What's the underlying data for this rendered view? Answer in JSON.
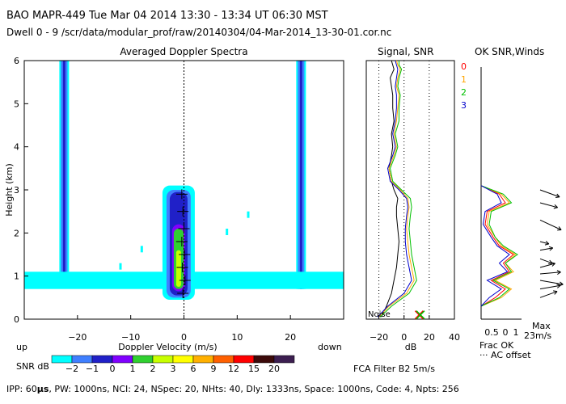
{
  "header": {
    "line1": "BAO  MAPR-449  Tue Mar 04 2014  13:30 - 13:34 UT 06:30 MST",
    "line2": "Dwell  0 -  9   /scr/data/modular_prof/raw/20140304/04-Mar-2014_13-30-01.cor.nc"
  },
  "colors": {
    "snr_palette": [
      "#00ffff",
      "#3f7fff",
      "#2020c8",
      "#8000ff",
      "#30d030",
      "#c8ff00",
      "#ffff00",
      "#ffb000",
      "#ff6000",
      "#ff0000",
      "#3c0a0a",
      "#3c1e50"
    ],
    "series": [
      "#ff0000",
      "#ffa500",
      "#00c000",
      "#0000cc"
    ]
  },
  "chart_data": [
    {
      "type": "heatmap",
      "title": "Averaged Doppler Spectra",
      "xlabel": "Doppler Velocity (m/s)",
      "ylabel": "Height (km)",
      "xlim": [
        -30,
        30
      ],
      "ylim": [
        0,
        6
      ],
      "xticks": [
        -20,
        -10,
        0,
        10,
        20
      ],
      "yticks": [
        0,
        1,
        2,
        3,
        4,
        5,
        6
      ],
      "up_label": "up",
      "down_label": "down",
      "colorbar": {
        "label": "SNR dB",
        "tick_labels": [
          "-2",
          "-1",
          "0",
          "1",
          "2",
          "3",
          "6",
          "9",
          "12",
          "15",
          "20"
        ]
      },
      "features": [
        {
          "name": "interference-line-left",
          "velocity": -22.5,
          "height_range": [
            0.75,
            6
          ]
        },
        {
          "name": "interference-line-right",
          "velocity": 22,
          "height_range": [
            0.7,
            6
          ]
        },
        {
          "name": "ground-clutter-band",
          "velocity_range": [
            -30,
            30
          ],
          "height_range": [
            0.7,
            1.1
          ]
        },
        {
          "name": "precip-core",
          "velocity": -1,
          "height_range": [
            0.5,
            3.0
          ]
        }
      ],
      "wind_profile": [
        {
          "h": 0.6,
          "v": -0.2
        },
        {
          "h": 0.9,
          "v": 0.2
        },
        {
          "h": 1.2,
          "v": -0.3
        },
        {
          "h": 1.5,
          "v": 0.1
        },
        {
          "h": 1.8,
          "v": -0.4
        },
        {
          "h": 2.1,
          "v": 0.0
        },
        {
          "h": 2.5,
          "v": -0.2
        },
        {
          "h": 2.9,
          "v": -0.4
        }
      ]
    },
    {
      "type": "line",
      "title": "Signal, SNR",
      "xlabel": "dB",
      "xlim": [
        -30,
        40
      ],
      "ylim": [
        0,
        6
      ],
      "xticks": [
        -20,
        0,
        20,
        40
      ],
      "noise_label": "Noise",
      "series": [
        {
          "name": "0",
          "x": [
            -18,
            -14,
            -10,
            -8,
            -6,
            -5,
            -4,
            -5,
            -6,
            -6,
            -5,
            -8,
            -10,
            -12,
            -10,
            -9,
            -10,
            -8,
            -9,
            -9,
            -10,
            -11,
            -8,
            -9,
            -10
          ],
          "y": [
            0.05,
            0.3,
            0.6,
            0.9,
            1.2,
            1.5,
            1.8,
            2.1,
            2.4,
            2.6,
            2.8,
            3.0,
            3.2,
            3.5,
            3.8,
            4.0,
            4.3,
            4.6,
            4.9,
            5.2,
            5.4,
            5.6,
            5.8,
            5.9,
            6.0
          ]
        },
        {
          "name": "1",
          "x": [
            -20,
            -12,
            2,
            8,
            6,
            4,
            3,
            2,
            3,
            4,
            3,
            -3,
            -10,
            -12,
            -8,
            -6,
            -8,
            -6,
            -5,
            -4,
            -6,
            -5,
            -3,
            -5,
            -6
          ],
          "y": [
            0.05,
            0.3,
            0.6,
            0.9,
            1.2,
            1.5,
            1.8,
            2.1,
            2.4,
            2.6,
            2.8,
            3.0,
            3.2,
            3.5,
            3.8,
            4.0,
            4.3,
            4.6,
            4.9,
            5.2,
            5.4,
            5.6,
            5.8,
            5.9,
            6.0
          ]
        },
        {
          "name": "2",
          "x": [
            -19,
            -10,
            4,
            10,
            8,
            6,
            5,
            4,
            5,
            6,
            5,
            -2,
            -9,
            -11,
            -7,
            -5,
            -7,
            -4,
            -4,
            -3,
            -5,
            -4,
            -2,
            -4,
            -4
          ],
          "y": [
            0.05,
            0.3,
            0.6,
            0.9,
            1.2,
            1.5,
            1.8,
            2.1,
            2.4,
            2.6,
            2.8,
            3.0,
            3.2,
            3.5,
            3.8,
            4.0,
            4.3,
            4.6,
            4.9,
            5.2,
            5.4,
            5.6,
            5.8,
            5.9,
            6.0
          ]
        },
        {
          "name": "3",
          "x": [
            -21,
            -13,
            0,
            6,
            4,
            2,
            1,
            1,
            2,
            3,
            2,
            -4,
            -11,
            -13,
            -9,
            -7,
            -9,
            -7,
            -6,
            -6,
            -7,
            -6,
            -5,
            -6,
            -7
          ],
          "y": [
            0.05,
            0.3,
            0.6,
            0.9,
            1.2,
            1.5,
            1.8,
            2.1,
            2.4,
            2.6,
            2.8,
            3.0,
            3.2,
            3.5,
            3.8,
            4.0,
            4.3,
            4.6,
            4.9,
            5.2,
            5.4,
            5.6,
            5.8,
            5.9,
            6.0
          ]
        }
      ],
      "reference_lines": [
        -20,
        0,
        20
      ],
      "noise_markers": [
        {
          "x": 12,
          "y": 0.1
        },
        {
          "x": 13,
          "y": 0.1
        }
      ]
    },
    {
      "type": "line",
      "title": "OK SNR,Winds",
      "xlabel": "Frac OK",
      "xlim": [
        0,
        1
      ],
      "ylim": [
        0,
        6
      ],
      "xtick_labels": [
        "0.5",
        "0",
        "1"
      ],
      "ac_offset_label": "··· AC offset",
      "filter_label": "FCA Filter B2  5m/s",
      "max_label": "Max",
      "max_value_label": "23m/s",
      "series_labels": [
        "0",
        "1",
        "2",
        "3"
      ],
      "series": [
        {
          "name": "0",
          "x": [
            0.0,
            0.35,
            0.6,
            0.25,
            0.7,
            0.55,
            0.8,
            0.45,
            0.3,
            0.1,
            0.15,
            0.6,
            0.45,
            0.0
          ],
          "y": [
            0.3,
            0.5,
            0.7,
            0.9,
            1.1,
            1.3,
            1.5,
            1.7,
            1.9,
            2.2,
            2.5,
            2.7,
            2.9,
            3.1
          ]
        },
        {
          "name": "1",
          "x": [
            0.0,
            0.5,
            0.75,
            0.35,
            0.8,
            0.6,
            0.85,
            0.5,
            0.35,
            0.15,
            0.2,
            0.7,
            0.5,
            0.0
          ],
          "y": [
            0.3,
            0.5,
            0.7,
            0.9,
            1.1,
            1.3,
            1.5,
            1.7,
            1.9,
            2.2,
            2.5,
            2.7,
            2.9,
            3.1
          ]
        },
        {
          "name": "2",
          "x": [
            0.0,
            0.45,
            0.7,
            0.3,
            0.75,
            0.6,
            0.9,
            0.55,
            0.35,
            0.2,
            0.25,
            0.75,
            0.55,
            0.0
          ],
          "y": [
            0.3,
            0.5,
            0.7,
            0.9,
            1.1,
            1.3,
            1.5,
            1.7,
            1.9,
            2.2,
            2.5,
            2.7,
            2.9,
            3.1
          ]
        },
        {
          "name": "3",
          "x": [
            0.0,
            0.2,
            0.5,
            0.15,
            0.65,
            0.45,
            0.7,
            0.4,
            0.25,
            0.05,
            0.1,
            0.5,
            0.4,
            0.0
          ],
          "y": [
            0.3,
            0.5,
            0.7,
            0.9,
            1.1,
            1.3,
            1.5,
            1.7,
            1.9,
            2.2,
            2.5,
            2.7,
            2.9,
            3.1
          ]
        }
      ],
      "winds": [
        {
          "h": 0.5,
          "dir_deg": 20,
          "speed": 0.7
        },
        {
          "h": 0.7,
          "dir_deg": 10,
          "speed": 0.8
        },
        {
          "h": 0.9,
          "dir_deg": -10,
          "speed": 0.9
        },
        {
          "h": 1.05,
          "dir_deg": 5,
          "speed": 0.8
        },
        {
          "h": 1.2,
          "dir_deg": 15,
          "speed": 0.6
        },
        {
          "h": 1.4,
          "dir_deg": -20,
          "speed": 0.5
        },
        {
          "h": 1.6,
          "dir_deg": 10,
          "speed": 0.5
        },
        {
          "h": 1.8,
          "dir_deg": -15,
          "speed": 0.35
        },
        {
          "h": 2.3,
          "dir_deg": -25,
          "speed": 0.9
        },
        {
          "h": 2.7,
          "dir_deg": -15,
          "speed": 0.7
        },
        {
          "h": 3.0,
          "dir_deg": -20,
          "speed": 0.8
        }
      ]
    }
  ],
  "footer": {
    "ipp_label": "IPP:  60",
    "ipp_unit": "μs",
    "params": ",  PW: 1000ns,  NCI:  24,  NSpec: 20, NHts: 40,  Dly: 1333ns,  Space: 1000ns,  Code: 4,  Npts: 256"
  }
}
